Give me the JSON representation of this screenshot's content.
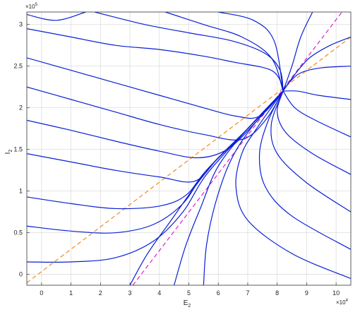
{
  "chart_data": {
    "type": "phase-portrait",
    "xlabel": "E",
    "xlabel_sub": "2",
    "ylabel": "I",
    "ylabel_sub": "2",
    "x_multiplier": {
      "base": "×10",
      "exp": "4"
    },
    "y_multiplier": {
      "base": "×10",
      "exp": "5"
    },
    "xlim": [
      -0.5,
      10.5
    ],
    "ylim": [
      -0.13,
      3.15
    ],
    "xticks": [
      0,
      1,
      2,
      3,
      4,
      5,
      6,
      7,
      8,
      9,
      10
    ],
    "yticks": [
      0,
      0.5,
      1,
      1.5,
      2,
      2.5,
      3
    ],
    "grid": true,
    "trajectory_color": "#0a1fd6",
    "trajectories": [
      {
        "x": [
          -0.5,
          0.5,
          1.5
        ],
        "y": [
          3.12,
          3.05,
          3.15
        ]
      },
      {
        "x": [
          -0.5,
          1,
          2.5,
          4,
          5.5,
          6.5,
          7.8,
          8.2
        ],
        "y": [
          2.95,
          2.85,
          2.75,
          2.7,
          2.62,
          2.55,
          2.45,
          2.25
        ]
      },
      {
        "x": [
          1.8,
          3.5,
          5,
          6.5,
          7.6,
          8.1,
          8.2
        ],
        "y": [
          3.15,
          3.0,
          2.9,
          2.8,
          2.65,
          2.45,
          2.2
        ]
      },
      {
        "x": [
          4.2,
          5.5,
          6.8,
          7.8,
          8.2
        ],
        "y": [
          3.15,
          3.0,
          2.85,
          2.6,
          2.2
        ]
      },
      {
        "x": [
          6.0,
          7.2,
          7.9,
          8.2
        ],
        "y": [
          3.15,
          3.05,
          2.8,
          2.2
        ]
      },
      {
        "x": [
          -0.5,
          1,
          2.5,
          4,
          5.5,
          6.6,
          7.4,
          8.2
        ],
        "y": [
          2.6,
          2.45,
          2.3,
          2.15,
          2.0,
          1.9,
          1.9,
          2.2
        ]
      },
      {
        "x": [
          -0.5,
          1,
          2.5,
          4,
          5.5,
          6.8,
          7.6,
          8.2
        ],
        "y": [
          2.25,
          2.1,
          1.95,
          1.8,
          1.68,
          1.62,
          1.85,
          2.2
        ]
      },
      {
        "x": [
          -0.5,
          1,
          2.5,
          4,
          5.3,
          6.3,
          7.2,
          8.2
        ],
        "y": [
          1.85,
          1.73,
          1.6,
          1.48,
          1.4,
          1.5,
          1.8,
          2.2
        ]
      },
      {
        "x": [
          -0.5,
          1,
          2.5,
          4,
          5.2,
          6.0,
          7.0,
          8.2
        ],
        "y": [
          1.45,
          1.35,
          1.25,
          1.17,
          1.12,
          1.4,
          1.75,
          2.2
        ]
      },
      {
        "x": [
          -0.5,
          1,
          2.5,
          4,
          4.9,
          5.6,
          7.0,
          8.2
        ],
        "y": [
          0.93,
          0.85,
          0.79,
          0.82,
          0.95,
          1.25,
          1.75,
          2.2
        ]
      },
      {
        "x": [
          -0.5,
          1,
          2.5,
          3.8,
          4.8,
          5.6,
          7.0,
          8.2
        ],
        "y": [
          0.58,
          0.52,
          0.5,
          0.6,
          0.85,
          1.25,
          1.75,
          2.2
        ]
      },
      {
        "x": [
          -0.5,
          1,
          2.5,
          3.8,
          4.8,
          5.6,
          7.0,
          8.2
        ],
        "y": [
          0.15,
          0.15,
          0.2,
          0.4,
          0.75,
          1.2,
          1.75,
          2.2
        ]
      },
      {
        "x": [
          3.0,
          3.6,
          4.4,
          5.2,
          6.0,
          7.0,
          8.2
        ],
        "y": [
          -0.13,
          0.25,
          0.65,
          1.05,
          1.4,
          1.75,
          2.2
        ]
      },
      {
        "x": [
          4.5,
          4.9,
          5.4,
          6.0,
          7.0,
          8.2
        ],
        "y": [
          -0.13,
          0.35,
          0.8,
          1.3,
          1.75,
          2.2
        ]
      },
      {
        "x": [
          5.5,
          5.6,
          5.9,
          6.4,
          7.1,
          8.2
        ],
        "y": [
          -0.13,
          0.35,
          0.85,
          1.35,
          1.75,
          2.2
        ]
      },
      {
        "x": [
          10.5,
          8.5,
          7.0,
          6.6,
          6.8,
          7.3,
          8.2
        ],
        "y": [
          -0.05,
          0.25,
          0.65,
          1.05,
          1.45,
          1.75,
          2.2
        ]
      },
      {
        "x": [
          10.5,
          8.5,
          7.6,
          7.4,
          7.7,
          8.2
        ],
        "y": [
          0.3,
          0.7,
          1.05,
          1.45,
          1.85,
          2.2
        ]
      },
      {
        "x": [
          10.5,
          9.0,
          8.0,
          7.8,
          8.2
        ],
        "y": [
          0.75,
          1.1,
          1.45,
          1.8,
          2.2
        ]
      },
      {
        "x": [
          10.5,
          9.2,
          8.3,
          8.0,
          8.2
        ],
        "y": [
          1.2,
          1.45,
          1.7,
          1.95,
          2.2
        ]
      },
      {
        "x": [
          10.5,
          9.3,
          8.6,
          8.2
        ],
        "y": [
          1.65,
          1.85,
          2.0,
          2.2
        ]
      },
      {
        "x": [
          10.5,
          9.4,
          8.7,
          8.2
        ],
        "y": [
          2.1,
          2.15,
          2.2,
          2.2
        ]
      },
      {
        "x": [
          10.5,
          9.5,
          8.8,
          8.4,
          8.2
        ],
        "y": [
          2.5,
          2.48,
          2.42,
          2.3,
          2.2
        ]
      },
      {
        "x": [
          10.5,
          9.8,
          9.1,
          8.6,
          8.2
        ],
        "y": [
          2.85,
          2.75,
          2.6,
          2.4,
          2.2
        ]
      },
      {
        "x": [
          9.2,
          8.8,
          8.5,
          8.2
        ],
        "y": [
          3.15,
          2.85,
          2.5,
          2.2
        ]
      }
    ],
    "nullclines": [
      {
        "color": "#f08a1c",
        "x": [
          -0.5,
          10.5
        ],
        "y": [
          -0.1,
          2.85
        ]
      },
      {
        "color": "#e01fc8",
        "x": [
          3.1,
          10.2
        ],
        "y": [
          -0.13,
          3.15
        ]
      }
    ]
  }
}
